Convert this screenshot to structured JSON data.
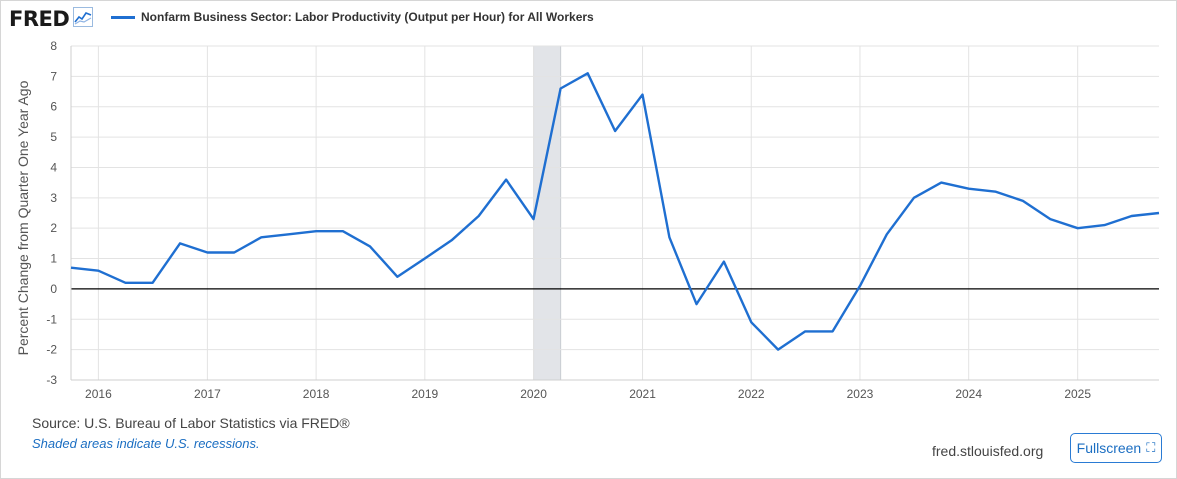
{
  "header": {
    "logo_text": "FRED",
    "logo_icon": "line-graph-icon",
    "legend_label": "Nonfarm Business Sector: Labor Productivity (Output per Hour) for All Workers"
  },
  "footer": {
    "source": "Source: U.S. Bureau of Labor Statistics via FRED®",
    "note": "Shaded areas indicate U.S. recessions.",
    "site": "fred.stlouisfed.org",
    "fullscreen_label": "Fullscreen",
    "fullscreen_icon": "expand-icon"
  },
  "colors": {
    "series": "#1f6fd1",
    "recession": "#e2e4e8",
    "grid": "#e3e3e3",
    "zero_line": "#000000"
  },
  "chart_data": {
    "type": "line",
    "ylabel": "Percent Change from Quarter One Year Ago",
    "xlabel": "",
    "ylim": [
      -3,
      8
    ],
    "y_ticks": [
      8,
      7,
      6,
      5,
      4,
      3,
      2,
      1,
      0,
      -1,
      -2,
      -3
    ],
    "x_range": [
      "2015-10-01",
      "2025-10-01"
    ],
    "x_ticks": [
      "2016",
      "2017",
      "2018",
      "2019",
      "2020",
      "2021",
      "2022",
      "2023",
      "2024",
      "2025"
    ],
    "grid": true,
    "recessions": [
      {
        "start": "2020-01-01",
        "end": "2020-04-01"
      }
    ],
    "series": [
      {
        "name": "Nonfarm Business Sector: Labor Productivity (Output per Hour) for All Workers",
        "x": [
          "2015-10-01",
          "2016-01-01",
          "2016-04-01",
          "2016-07-01",
          "2016-10-01",
          "2017-01-01",
          "2017-04-01",
          "2017-07-01",
          "2017-10-01",
          "2018-01-01",
          "2018-04-01",
          "2018-07-01",
          "2018-10-01",
          "2019-01-01",
          "2019-04-01",
          "2019-07-01",
          "2019-10-01",
          "2020-01-01",
          "2020-04-01",
          "2020-07-01",
          "2020-10-01",
          "2021-01-01",
          "2021-04-01",
          "2021-07-01",
          "2021-10-01",
          "2022-01-01",
          "2022-04-01",
          "2022-07-01",
          "2022-10-01",
          "2023-01-01",
          "2023-04-01",
          "2023-07-01",
          "2023-10-01",
          "2024-01-01",
          "2024-04-01",
          "2024-07-01",
          "2024-10-01",
          "2025-01-01",
          "2025-04-01",
          "2025-07-01",
          "2025-10-01"
        ],
        "values": [
          0.7,
          0.6,
          0.2,
          0.2,
          1.5,
          1.2,
          1.2,
          1.7,
          1.8,
          1.9,
          1.9,
          1.4,
          0.4,
          1.0,
          1.6,
          2.4,
          3.6,
          2.3,
          6.6,
          7.1,
          5.2,
          6.4,
          1.7,
          -0.5,
          0.9,
          -1.1,
          -2.0,
          -1.4,
          -1.4,
          0.1,
          1.8,
          3.0,
          3.5,
          3.3,
          3.2,
          2.9,
          2.3,
          2.0,
          2.1,
          2.4,
          2.5
        ]
      }
    ]
  }
}
